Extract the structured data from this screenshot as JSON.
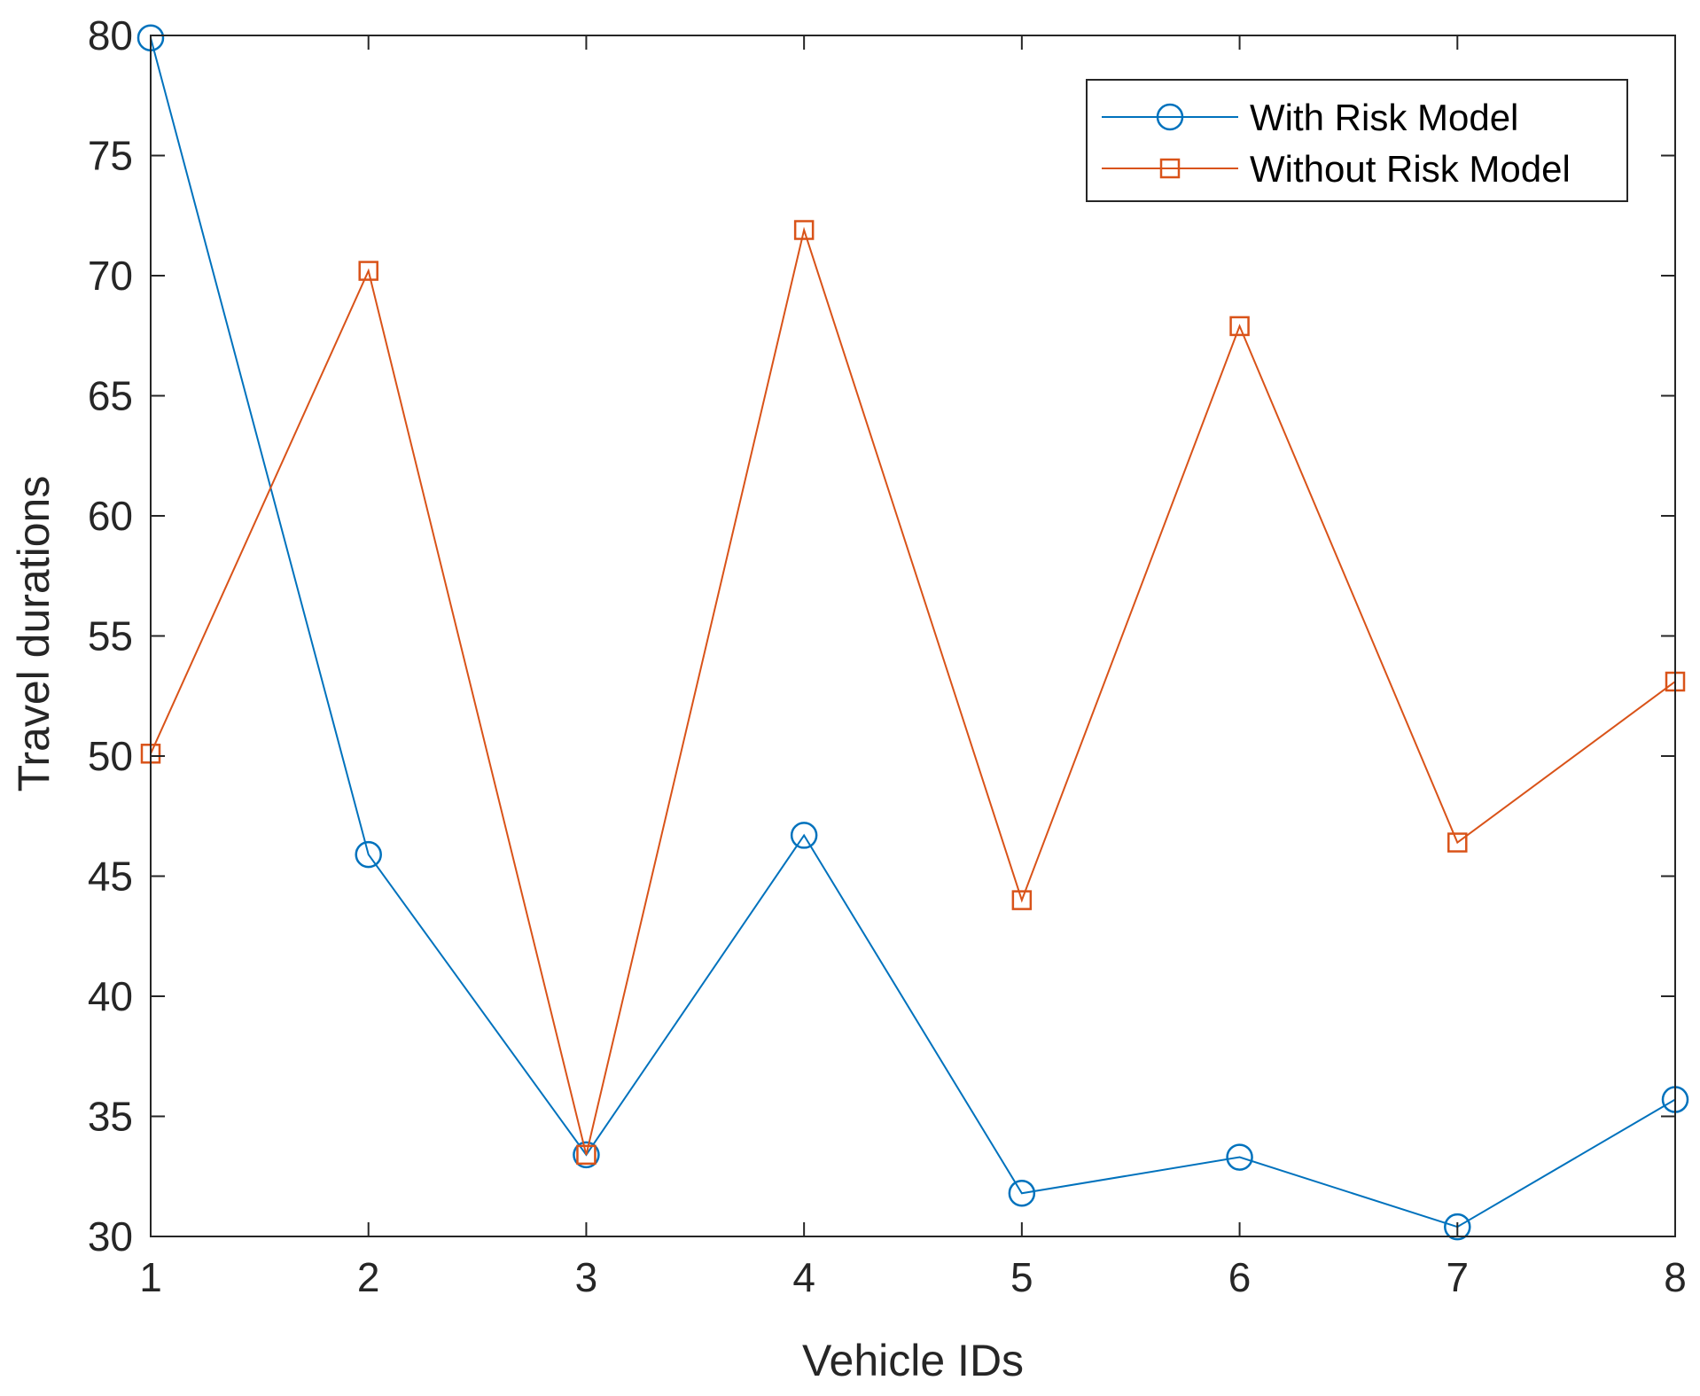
{
  "chart_data": {
    "type": "line",
    "xlabel": "Vehicle IDs",
    "ylabel": "Travel durations",
    "x": [
      1,
      2,
      3,
      4,
      5,
      6,
      7,
      8
    ],
    "xlim": [
      1,
      8
    ],
    "ylim": [
      30,
      80
    ],
    "xticks": [
      1,
      2,
      3,
      4,
      5,
      6,
      7,
      8
    ],
    "yticks": [
      30,
      35,
      40,
      45,
      50,
      55,
      60,
      65,
      70,
      75,
      80
    ],
    "grid": false,
    "legend_position": "top-right",
    "series": [
      {
        "name": "With Risk Model",
        "color": "#0072BD",
        "marker": "circle",
        "values": [
          79.9,
          45.9,
          33.4,
          46.7,
          31.8,
          33.3,
          30.4,
          35.7
        ]
      },
      {
        "name": "Without Risk Model",
        "color": "#D95319",
        "marker": "square",
        "values": [
          50.1,
          70.2,
          33.4,
          71.9,
          44.0,
          67.9,
          46.4,
          53.1
        ]
      }
    ]
  }
}
